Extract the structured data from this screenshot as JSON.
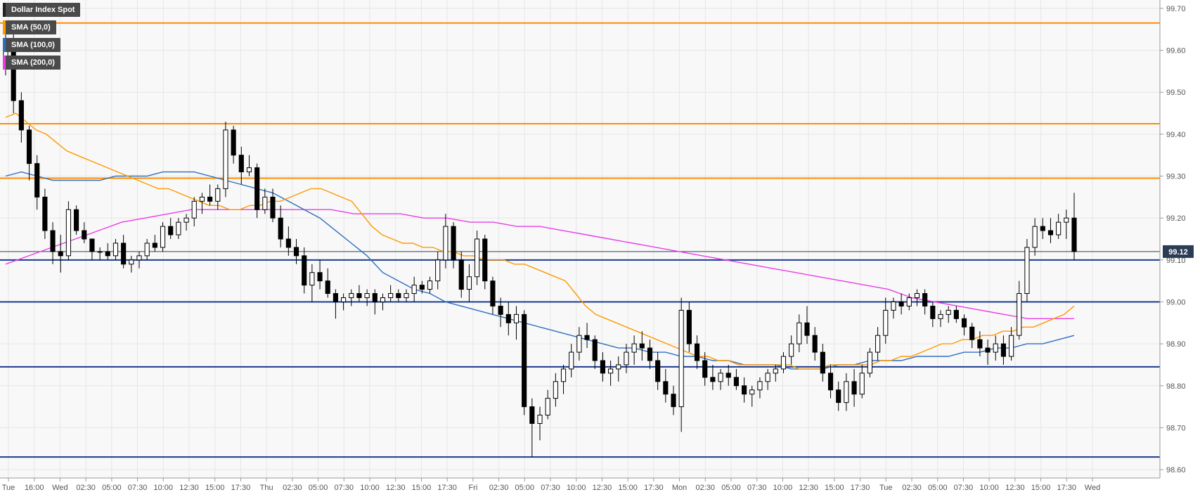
{
  "chart_data": {
    "type": "candlestick",
    "title": "Dollar Index Spot",
    "legend": [
      {
        "label": "Dollar Index Spot",
        "color": "#222222"
      },
      {
        "label": "SMA (50,0)",
        "color": "#ff9900"
      },
      {
        "label": "SMA (100,0)",
        "color": "#2e6fc0"
      },
      {
        "label": "SMA (200,0)",
        "color": "#e83de8"
      }
    ],
    "legend_placement": "top-left",
    "ylim": [
      98.58,
      99.72
    ],
    "yticks": [
      "99.70",
      "99.60",
      "99.50",
      "99.40",
      "99.30",
      "99.20",
      "99.10",
      "99.00",
      "98.90",
      "98.80",
      "98.70",
      "98.60"
    ],
    "ytick_values": [
      99.7,
      99.6,
      99.5,
      99.4,
      99.3,
      99.2,
      99.1,
      99.0,
      98.9,
      98.8,
      98.7,
      98.6
    ],
    "last_price": "99.12",
    "last_price_value": 99.12,
    "xticks": [
      "Tue",
      "16:00",
      "Wed",
      "02:30",
      "05:00",
      "07:30",
      "10:00",
      "12:30",
      "15:00",
      "17:30",
      "Thu",
      "02:30",
      "05:00",
      "07:30",
      "10:00",
      "12:30",
      "15:00",
      "17:30",
      "Fri",
      "02:30",
      "05:00",
      "07:30",
      "10:00",
      "12:30",
      "15:00",
      "17:30",
      "Mon",
      "02:30",
      "05:00",
      "07:30",
      "10:00",
      "12:30",
      "15:00",
      "17:30",
      "Tue",
      "02:30",
      "05:00",
      "07:30",
      "10:00",
      "12:30",
      "15:00",
      "17:30",
      "Wed"
    ],
    "resistance_levels": [
      99.665,
      99.425,
      99.295
    ],
    "support_levels": [
      99.1,
      99.0,
      98.845,
      98.63
    ],
    "grid": true,
    "colors": {
      "up": "#ffffff",
      "down": "#000000",
      "resistance": "#ff8c00",
      "support": "#1a3a8c",
      "grid": "#e6e6e6",
      "last_price": "#2b3d55"
    },
    "candles": [
      [
        99.58,
        99.66,
        99.54,
        99.6
      ],
      [
        99.6,
        99.65,
        99.45,
        99.48
      ],
      [
        99.48,
        99.5,
        99.38,
        99.41
      ],
      [
        99.41,
        99.42,
        99.29,
        99.33
      ],
      [
        99.33,
        99.35,
        99.22,
        99.25
      ],
      [
        99.25,
        99.27,
        99.15,
        99.17
      ],
      [
        99.17,
        99.19,
        99.09,
        99.12
      ],
      [
        99.12,
        99.16,
        99.07,
        99.11
      ],
      [
        99.11,
        99.24,
        99.1,
        99.22
      ],
      [
        99.22,
        99.23,
        99.16,
        99.17
      ],
      [
        99.17,
        99.19,
        99.14,
        99.15
      ],
      [
        99.15,
        99.15,
        99.1,
        99.12
      ],
      [
        99.12,
        99.13,
        99.1,
        99.12
      ],
      [
        99.12,
        99.14,
        99.1,
        99.11
      ],
      [
        99.11,
        99.15,
        99.1,
        99.14
      ],
      [
        99.14,
        99.16,
        99.08,
        99.09
      ],
      [
        99.09,
        99.11,
        99.07,
        99.1
      ],
      [
        99.1,
        99.12,
        99.08,
        99.11
      ],
      [
        99.11,
        99.15,
        99.1,
        99.14
      ],
      [
        99.14,
        99.16,
        99.12,
        99.13
      ],
      [
        99.13,
        99.19,
        99.12,
        99.18
      ],
      [
        99.18,
        99.2,
        99.15,
        99.16
      ],
      [
        99.16,
        99.2,
        99.15,
        99.19
      ],
      [
        99.19,
        99.21,
        99.17,
        99.2
      ],
      [
        99.2,
        99.25,
        99.18,
        99.24
      ],
      [
        99.24,
        99.26,
        99.21,
        99.25
      ],
      [
        99.25,
        99.28,
        99.23,
        99.24
      ],
      [
        99.24,
        99.28,
        99.22,
        99.27
      ],
      [
        99.27,
        99.43,
        99.25,
        99.41
      ],
      [
        99.41,
        99.42,
        99.33,
        99.35
      ],
      [
        99.35,
        99.37,
        99.28,
        99.31
      ],
      [
        99.31,
        99.35,
        99.3,
        99.32
      ],
      [
        99.32,
        99.33,
        99.2,
        99.22
      ],
      [
        99.22,
        99.27,
        99.21,
        99.25
      ],
      [
        99.25,
        99.27,
        99.19,
        99.2
      ],
      [
        99.2,
        99.23,
        99.13,
        99.15
      ],
      [
        99.15,
        99.18,
        99.11,
        99.13
      ],
      [
        99.13,
        99.15,
        99.09,
        99.11
      ],
      [
        99.11,
        99.13,
        99.02,
        99.04
      ],
      [
        99.04,
        99.09,
        99.0,
        99.07
      ],
      [
        99.07,
        99.1,
        99.03,
        99.05
      ],
      [
        99.05,
        99.08,
        99.01,
        99.02
      ],
      [
        99.02,
        99.03,
        98.96,
        99.0
      ],
      [
        99.0,
        99.02,
        98.98,
        99.01
      ],
      [
        99.01,
        99.03,
        98.99,
        99.02
      ],
      [
        99.02,
        99.04,
        99.0,
        99.01
      ],
      [
        99.01,
        99.03,
        98.99,
        99.02
      ],
      [
        99.02,
        99.03,
        98.97,
        99.0
      ],
      [
        99.0,
        99.02,
        98.98,
        99.01
      ],
      [
        99.01,
        99.04,
        99.0,
        99.02
      ],
      [
        99.02,
        99.03,
        99.0,
        99.01
      ],
      [
        99.01,
        99.03,
        99.0,
        99.02
      ],
      [
        99.02,
        99.06,
        99.0,
        99.04
      ],
      [
        99.04,
        99.05,
        99.02,
        99.03
      ],
      [
        99.03,
        99.06,
        99.02,
        99.05
      ],
      [
        99.05,
        99.12,
        99.03,
        99.1
      ],
      [
        99.1,
        99.21,
        99.08,
        99.18
      ],
      [
        99.18,
        99.19,
        99.08,
        99.1
      ],
      [
        99.1,
        99.12,
        99.01,
        99.03
      ],
      [
        99.03,
        99.09,
        99.0,
        99.06
      ],
      [
        99.06,
        99.17,
        99.04,
        99.15
      ],
      [
        99.15,
        99.16,
        99.03,
        99.05
      ],
      [
        99.05,
        99.06,
        98.97,
        98.99
      ],
      [
        98.99,
        99.01,
        98.94,
        98.97
      ],
      [
        98.97,
        99.0,
        98.92,
        98.95
      ],
      [
        98.95,
        98.99,
        98.91,
        98.97
      ],
      [
        98.97,
        98.98,
        98.73,
        98.75
      ],
      [
        98.75,
        98.77,
        98.63,
        98.71
      ],
      [
        98.71,
        98.75,
        98.67,
        98.73
      ],
      [
        98.73,
        98.79,
        98.72,
        98.77
      ],
      [
        98.77,
        98.83,
        98.75,
        98.81
      ],
      [
        98.81,
        98.85,
        98.78,
        98.84
      ],
      [
        98.84,
        98.9,
        98.82,
        98.88
      ],
      [
        98.88,
        98.94,
        98.86,
        98.92
      ],
      [
        98.92,
        98.95,
        98.89,
        98.91
      ],
      [
        98.91,
        98.92,
        98.84,
        98.86
      ],
      [
        98.86,
        98.88,
        98.81,
        98.83
      ],
      [
        98.83,
        98.86,
        98.8,
        98.84
      ],
      [
        98.84,
        98.87,
        98.81,
        98.85
      ],
      [
        98.85,
        98.9,
        98.83,
        98.88
      ],
      [
        98.88,
        98.92,
        98.85,
        98.9
      ],
      [
        98.9,
        98.93,
        98.86,
        98.89
      ],
      [
        98.89,
        98.91,
        98.84,
        98.86
      ],
      [
        98.86,
        98.88,
        98.79,
        98.81
      ],
      [
        98.81,
        98.84,
        98.76,
        98.78
      ],
      [
        98.78,
        98.8,
        98.73,
        98.75
      ],
      [
        98.75,
        99.01,
        98.69,
        98.98
      ],
      [
        98.98,
        99.0,
        98.88,
        98.9
      ],
      [
        98.9,
        98.92,
        98.84,
        98.86
      ],
      [
        98.86,
        98.88,
        98.8,
        98.82
      ],
      [
        98.82,
        98.85,
        98.79,
        98.81
      ],
      [
        98.81,
        98.84,
        98.79,
        98.83
      ],
      [
        98.83,
        98.85,
        98.8,
        98.82
      ],
      [
        98.82,
        98.84,
        98.79,
        98.8
      ],
      [
        98.8,
        98.82,
        98.76,
        98.78
      ],
      [
        98.78,
        98.8,
        98.75,
        98.79
      ],
      [
        98.79,
        98.82,
        98.77,
        98.81
      ],
      [
        98.81,
        98.84,
        98.79,
        98.83
      ],
      [
        98.83,
        98.85,
        98.81,
        98.84
      ],
      [
        98.84,
        98.88,
        98.83,
        98.87
      ],
      [
        98.87,
        98.92,
        98.85,
        98.9
      ],
      [
        98.9,
        98.97,
        98.88,
        98.95
      ],
      [
        98.95,
        98.99,
        98.9,
        98.92
      ],
      [
        98.92,
        98.94,
        98.86,
        98.88
      ],
      [
        98.88,
        98.9,
        98.81,
        98.83
      ],
      [
        98.83,
        98.85,
        98.77,
        98.79
      ],
      [
        98.79,
        98.81,
        98.74,
        98.76
      ],
      [
        98.76,
        98.83,
        98.74,
        98.81
      ],
      [
        98.81,
        98.84,
        98.75,
        98.78
      ],
      [
        98.78,
        98.85,
        98.77,
        98.83
      ],
      [
        98.83,
        98.89,
        98.82,
        98.88
      ],
      [
        98.88,
        98.94,
        98.86,
        98.92
      ],
      [
        98.92,
        99.01,
        98.9,
        98.98
      ],
      [
        98.98,
        99.01,
        98.96,
        99.0
      ],
      [
        99.0,
        99.02,
        98.97,
        98.99
      ],
      [
        98.99,
        99.02,
        98.98,
        99.01
      ],
      [
        99.01,
        99.03,
        98.99,
        99.02
      ],
      [
        99.02,
        99.03,
        98.97,
        98.99
      ],
      [
        98.99,
        99.0,
        98.94,
        98.96
      ],
      [
        98.96,
        98.98,
        98.94,
        98.97
      ],
      [
        98.97,
        98.99,
        98.95,
        98.98
      ],
      [
        98.98,
        98.99,
        98.95,
        98.96
      ],
      [
        98.96,
        98.97,
        98.92,
        98.94
      ],
      [
        98.94,
        98.95,
        98.89,
        98.91
      ],
      [
        98.91,
        98.93,
        98.87,
        98.89
      ],
      [
        98.89,
        98.91,
        98.85,
        98.88
      ],
      [
        98.88,
        98.92,
        98.86,
        98.9
      ],
      [
        98.9,
        98.92,
        98.85,
        98.87
      ],
      [
        98.87,
        98.94,
        98.86,
        98.92
      ],
      [
        98.92,
        99.05,
        98.91,
        99.02
      ],
      [
        99.02,
        99.15,
        99.0,
        99.13
      ],
      [
        99.13,
        99.2,
        99.11,
        99.18
      ],
      [
        99.18,
        99.2,
        99.15,
        99.17
      ],
      [
        99.17,
        99.2,
        99.14,
        99.16
      ],
      [
        99.16,
        99.21,
        99.15,
        99.19
      ],
      [
        99.19,
        99.22,
        99.15,
        99.2
      ],
      [
        99.2,
        99.26,
        99.1,
        99.12
      ]
    ],
    "sma50": [
      99.44,
      99.45,
      99.43,
      99.41,
      99.4,
      99.38,
      99.36,
      99.35,
      99.34,
      99.33,
      99.32,
      99.31,
      99.3,
      99.29,
      99.28,
      99.27,
      99.27,
      99.26,
      99.25,
      99.24,
      99.23,
      99.23,
      99.22,
      99.22,
      99.23,
      99.23,
      99.24,
      99.24,
      99.25,
      99.26,
      99.27,
      99.27,
      99.26,
      99.25,
      99.24,
      99.21,
      99.18,
      99.16,
      99.15,
      99.14,
      99.14,
      99.13,
      99.13,
      99.12,
      99.12,
      99.11,
      99.11,
      99.1,
      99.1,
      99.1,
      99.09,
      99.09,
      99.08,
      99.07,
      99.06,
      99.05,
      99.02,
      98.99,
      98.97,
      98.96,
      98.95,
      98.94,
      98.93,
      98.92,
      98.91,
      98.9,
      98.89,
      98.88,
      98.87,
      98.87,
      98.86,
      98.86,
      98.85,
      98.85,
      98.85,
      98.85,
      98.85,
      98.85,
      98.84,
      98.84,
      98.84,
      98.85,
      98.85,
      98.85,
      98.85,
      98.85,
      98.86,
      98.86,
      98.87,
      98.87,
      98.88,
      98.89,
      98.9,
      98.9,
      98.91,
      98.91,
      98.92,
      98.92,
      98.93,
      98.93,
      98.94,
      98.94,
      98.95,
      98.96,
      98.97,
      98.99
    ],
    "sma100": [
      99.3,
      99.31,
      99.3,
      99.29,
      99.29,
      99.29,
      99.29,
      99.3,
      99.3,
      99.3,
      99.31,
      99.31,
      99.31,
      99.3,
      99.29,
      99.28,
      99.27,
      99.26,
      99.24,
      99.22,
      99.2,
      99.17,
      99.14,
      99.11,
      99.07,
      99.05,
      99.03,
      99.02,
      99.0,
      98.99,
      98.98,
      98.97,
      98.96,
      98.95,
      98.94,
      98.93,
      98.92,
      98.91,
      98.9,
      98.89,
      98.89,
      98.88,
      98.88,
      98.87,
      98.87,
      98.86,
      98.86,
      98.85,
      98.85,
      98.85,
      98.84,
      98.84,
      98.84,
      98.85,
      98.85,
      98.86,
      98.86,
      98.86,
      98.87,
      98.87,
      98.87,
      98.88,
      98.88,
      98.89,
      98.89,
      98.9,
      98.9,
      98.91,
      98.92
    ],
    "sma200": [
      99.09,
      99.11,
      99.13,
      99.15,
      99.17,
      99.19,
      99.2,
      99.21,
      99.22,
      99.22,
      99.22,
      99.22,
      99.22,
      99.22,
      99.22,
      99.21,
      99.21,
      99.21,
      99.2,
      99.2,
      99.19,
      99.19,
      99.18,
      99.18,
      99.17,
      99.16,
      99.15,
      99.14,
      99.13,
      99.12,
      99.11,
      99.1,
      99.09,
      99.08,
      99.07,
      99.06,
      99.05,
      99.04,
      99.03,
      99.01,
      99.0,
      98.99,
      98.98,
      98.97,
      98.96,
      98.96,
      98.96
    ]
  }
}
